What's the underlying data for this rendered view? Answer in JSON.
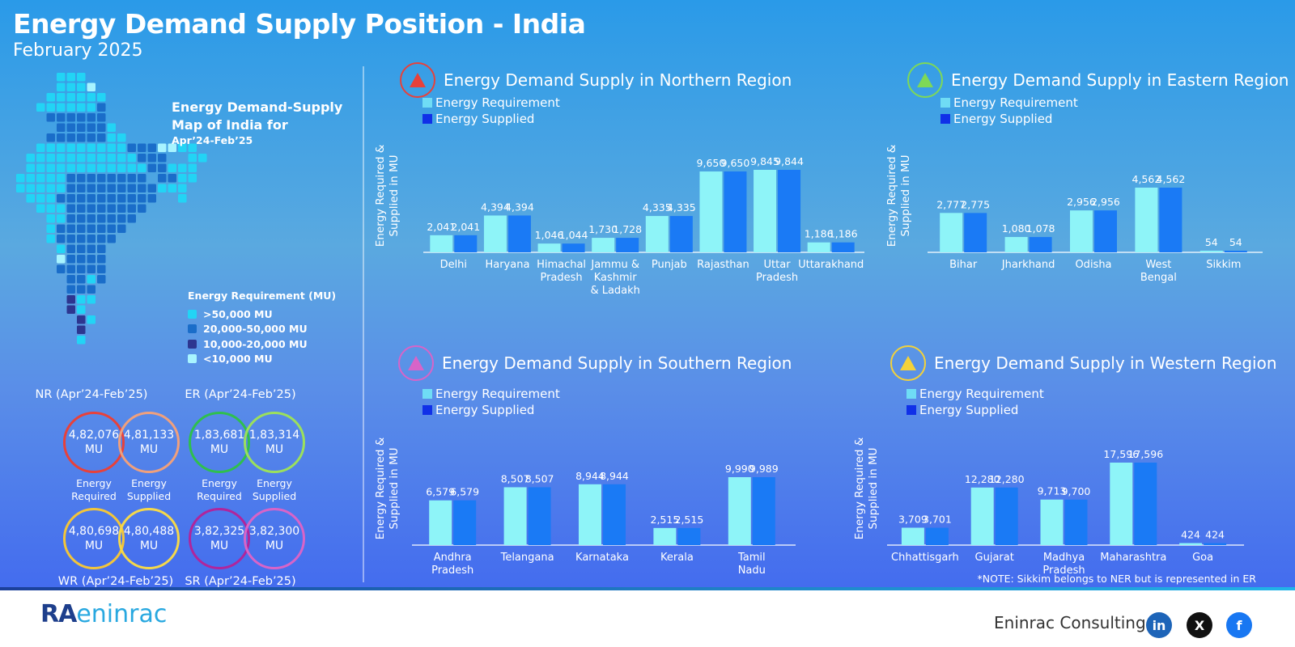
{
  "header": {
    "title": "Energy Demand Supply Position - India",
    "subtitle": "February 2025"
  },
  "map": {
    "title_line1": "Energy Demand-Supply",
    "title_line2": "Map of India for",
    "title_line3": "Apr’24-Feb’25",
    "legend_title": "Energy Requirement (MU)",
    "legend": [
      {
        "label": ">50,000 MU",
        "color": "#22d4f5"
      },
      {
        "label": "20,000-50,000 MU",
        "color": "#1a6dc9"
      },
      {
        "label": "10,000-20,000 MU",
        "color": "#2d3690"
      },
      {
        "label": "<10,000 MU",
        "color": "#a8f4ff"
      }
    ]
  },
  "summary": [
    {
      "region": "NR (Apr’24-Feb’25)",
      "required": "4,82,076",
      "supplied": "4,81,133",
      "unit": "MU",
      "req_color": "#e8413a",
      "sup_color": "#f0a07c"
    },
    {
      "region": "ER (Apr’24-Feb’25)",
      "required": "1,83,681",
      "supplied": "1,83,314",
      "unit": "MU",
      "req_color": "#2fbf4e",
      "sup_color": "#9be05c"
    },
    {
      "region": "WR (Apr’24-Feb’25)",
      "required": "4,80,698",
      "supplied": "4,80,488",
      "unit": "MU",
      "req_color": "#f3c53a",
      "sup_color": "#f5d84a"
    },
    {
      "region": "SR (Apr’24-Feb’25)",
      "required": "3,82,325",
      "supplied": "3,82,300",
      "unit": "MU",
      "req_color": "#b0259c",
      "sup_color": "#d864c8"
    }
  ],
  "summary_labels": {
    "required": "Energy Required",
    "supplied": "Energy Supplied"
  },
  "legend_labels": {
    "requirement": "Energy Requirement",
    "supplied": "Energy Supplied"
  },
  "ylabel_line1": "Energy Required &",
  "ylabel_line2": "Supplied in MU",
  "colors": {
    "requirement": "#8ef4f8",
    "supplied": "#1a7af5",
    "leg_requirement": "#6fdcf5",
    "leg_supplied": "#1030e8"
  },
  "chart_data": [
    {
      "type": "bar",
      "title": "Energy Demand Supply in Northern Region",
      "icon_color": "#e8413a",
      "categories": [
        "Delhi",
        "Haryana",
        "Himachal Pradesh",
        "Jammu & Kashmir & Ladakh",
        "Punjab",
        "Rajasthan",
        "Uttar Pradesh",
        "Uttarakhand"
      ],
      "series": [
        {
          "name": "Energy Requirement",
          "values": [
            2041,
            4394,
            1046,
            1730,
            4335,
            9650,
            9845,
            1186
          ],
          "labels": [
            "2,041",
            "4,394",
            "1,046",
            "1,730",
            "4,335",
            "9,650",
            "9,845",
            "1,186"
          ]
        },
        {
          "name": "Energy Supplied",
          "values": [
            2041,
            4394,
            1044,
            1728,
            4335,
            9650,
            9844,
            1186
          ],
          "labels": [
            "2,041",
            "4,394",
            "1,044",
            "1,728",
            "4,335",
            "9,650",
            "9,844",
            "1,186"
          ]
        }
      ],
      "ylabel": "Energy Required & Supplied in MU"
    },
    {
      "type": "bar",
      "title": "Energy Demand Supply in Eastern Region",
      "icon_color": "#7ed957",
      "categories": [
        "Bihar",
        "Jharkhand",
        "Odisha",
        "West Bengal",
        "Sikkim"
      ],
      "series": [
        {
          "name": "Energy Requirement",
          "values": [
            2777,
            1080,
            2956,
            4562,
            54
          ],
          "labels": [
            "2,777",
            "1,080",
            "2,956",
            "4,562",
            "54"
          ]
        },
        {
          "name": "Energy Supplied",
          "values": [
            2775,
            1078,
            2956,
            4562,
            54
          ],
          "labels": [
            "2,775",
            "1,078",
            "2,956",
            "4,562",
            "54"
          ]
        }
      ],
      "ylabel": "Energy Required & Supplied in MU"
    },
    {
      "type": "bar",
      "title": "Energy Demand Supply in Southern Region",
      "icon_color": "#d864c8",
      "categories": [
        "Andhra Pradesh",
        "Telangana",
        "Karnataka",
        "Kerala",
        "Tamil Nadu"
      ],
      "series": [
        {
          "name": "Energy Requirement",
          "values": [
            6579,
            8507,
            8944,
            2515,
            9990
          ],
          "labels": [
            "6,579",
            "8,507",
            "8,944",
            "2,515",
            "9,990"
          ]
        },
        {
          "name": "Energy Supplied",
          "values": [
            6579,
            8507,
            8944,
            2515,
            9989
          ],
          "labels": [
            "6,579",
            "8,507",
            "8,944",
            "2,515",
            "9,989"
          ]
        }
      ],
      "ylabel": "Energy Required & Supplied in MU"
    },
    {
      "type": "bar",
      "title": "Energy Demand Supply in Western Region",
      "icon_color": "#f3d23a",
      "categories": [
        "Chhattisgarh",
        "Gujarat",
        "Madhya Pradesh",
        "Maharashtra",
        "Goa"
      ],
      "series": [
        {
          "name": "Energy Requirement",
          "values": [
            3709,
            12280,
            9713,
            17596,
            424
          ],
          "labels": [
            "3,709",
            "12,280",
            "9,713",
            "17,596",
            "424"
          ]
        },
        {
          "name": "Energy Supplied",
          "values": [
            3701,
            12280,
            9700,
            17596,
            424
          ],
          "labels": [
            "3,701",
            "12,280",
            "9,700",
            "17,596",
            "424"
          ]
        }
      ],
      "ylabel": "Energy Required & Supplied in MU"
    }
  ],
  "footer": {
    "note": "*NOTE: Sikkim belongs to NER but is represented in ER",
    "logo_mark": "RA",
    "logo_rest": "eninrac",
    "company": "Eninrac Consulting",
    "social": [
      {
        "icon": "linkedin-icon",
        "glyph": "in",
        "color": "#1d64b8"
      },
      {
        "icon": "x-icon",
        "glyph": "X",
        "color": "#111111"
      },
      {
        "icon": "facebook-icon",
        "glyph": "f",
        "color": "#1877f2"
      }
    ]
  }
}
